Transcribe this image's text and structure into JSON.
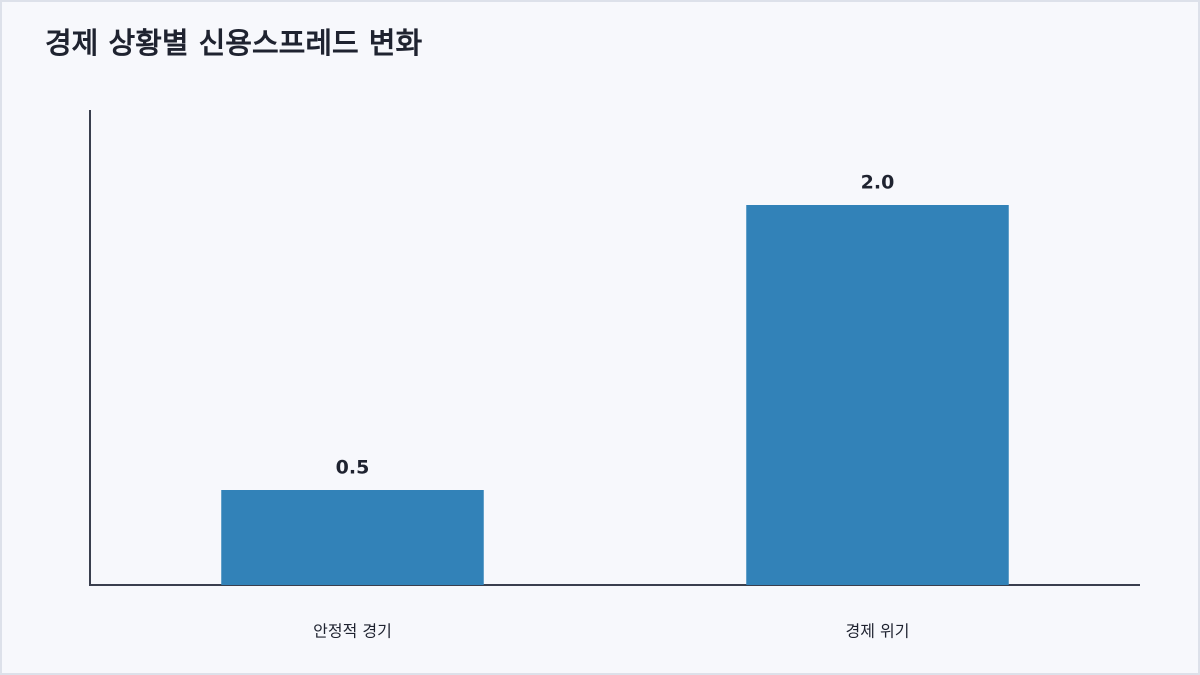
{
  "chart_data": {
    "type": "bar",
    "title": "경제 상황별 신용스프레드 변화",
    "categories": [
      "안정적 경기",
      "경제 위기"
    ],
    "values": [
      0.5,
      2.0
    ],
    "value_labels": [
      "0.5",
      "2.0"
    ],
    "color": "#3282b8",
    "ylim": [
      0,
      2.5
    ]
  }
}
